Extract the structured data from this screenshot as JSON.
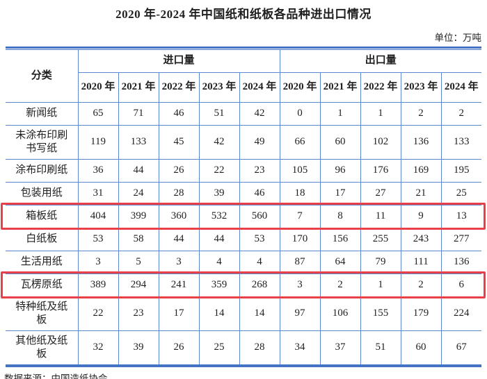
{
  "page": {
    "title": "2020 年-2024 年中国纸和纸板各品种进出口情况",
    "unit_label": "单位：万吨",
    "source_label": "数据来源：中国造纸协会"
  },
  "table": {
    "category_header": "分类",
    "import_group_header": "进口量",
    "export_group_header": "出口量",
    "years": [
      "2020 年",
      "2021 年",
      "2022 年",
      "2023 年",
      "2024 年"
    ],
    "rows": [
      {
        "category": "新闻纸",
        "import": [
          65,
          71,
          46,
          51,
          42
        ],
        "export": [
          0,
          1,
          1,
          2,
          2
        ],
        "highlighted": false
      },
      {
        "category": "未涂布印刷书写纸",
        "import": [
          119,
          133,
          45,
          42,
          49
        ],
        "export": [
          66,
          60,
          102,
          136,
          133
        ],
        "highlighted": false
      },
      {
        "category": "涂布印刷纸",
        "import": [
          36,
          44,
          26,
          22,
          23
        ],
        "export": [
          105,
          96,
          176,
          169,
          195
        ],
        "highlighted": false
      },
      {
        "category": "包装用纸",
        "import": [
          31,
          24,
          28,
          39,
          46
        ],
        "export": [
          18,
          17,
          27,
          21,
          25
        ],
        "highlighted": false
      },
      {
        "category": "箱板纸",
        "import": [
          404,
          399,
          360,
          532,
          560
        ],
        "export": [
          7,
          8,
          11,
          9,
          13
        ],
        "highlighted": true
      },
      {
        "category": "白纸板",
        "import": [
          53,
          58,
          44,
          44,
          53
        ],
        "export": [
          170,
          156,
          255,
          243,
          277
        ],
        "highlighted": false
      },
      {
        "category": "生活用纸",
        "import": [
          3,
          5,
          3,
          4,
          4
        ],
        "export": [
          87,
          64,
          79,
          111,
          136
        ],
        "highlighted": false
      },
      {
        "category": "瓦楞原纸",
        "import": [
          389,
          294,
          241,
          359,
          268
        ],
        "export": [
          3,
          2,
          1,
          2,
          6
        ],
        "highlighted": true
      },
      {
        "category": "特种纸及纸板",
        "import": [
          22,
          23,
          17,
          14,
          14
        ],
        "export": [
          97,
          106,
          155,
          179,
          224
        ],
        "highlighted": false
      },
      {
        "category": "其他纸及纸板",
        "import": [
          32,
          39,
          26,
          25,
          28
        ],
        "export": [
          34,
          37,
          51,
          60,
          67
        ],
        "highlighted": false
      }
    ]
  },
  "colors": {
    "border_blue": "#4472C4",
    "grid_blue": "#5B87CE",
    "highlight_red": "#E84049"
  }
}
